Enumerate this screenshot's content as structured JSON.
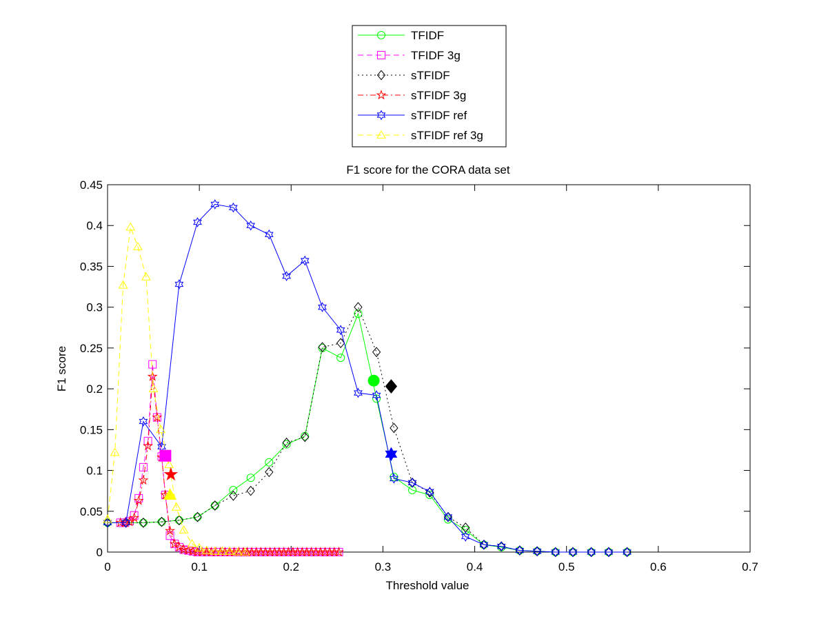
{
  "chart_data": {
    "type": "line",
    "title": "F1 score for the CORA data set",
    "xlabel": "Threshold value",
    "ylabel": "F1 score",
    "xlim": [
      0,
      0.7
    ],
    "ylim": [
      0,
      0.45
    ],
    "xticks": [
      "0",
      "0.1",
      "0.2",
      "0.3",
      "0.4",
      "0.5",
      "0.6",
      "0.7"
    ],
    "yticks": [
      "0",
      "0.05",
      "0.1",
      "0.15",
      "0.2",
      "0.25",
      "0.3",
      "0.35",
      "0.4",
      "0.45"
    ],
    "xtick_values": [
      0,
      0.1,
      0.2,
      0.3,
      0.4,
      0.5,
      0.6,
      0.7
    ],
    "ytick_values": [
      0,
      0.05,
      0.1,
      0.15,
      0.2,
      0.25,
      0.3,
      0.35,
      0.4,
      0.45
    ],
    "grid": false,
    "legend_position": "top-center, outside plot area",
    "series": [
      {
        "name": "TFIDF",
        "color": "#00ff00",
        "line": "solid",
        "marker": "circle",
        "x": [
          0,
          0.02,
          0.039,
          0.059,
          0.078,
          0.098,
          0.117,
          0.137,
          0.156,
          0.176,
          0.195,
          0.215,
          0.234,
          0.254,
          0.273,
          0.293,
          0.312,
          0.332,
          0.351,
          0.371,
          0.39,
          0.41,
          0.429,
          0.449,
          0.468,
          0.488,
          0.507,
          0.527,
          0.546,
          0.566
        ],
        "y": [
          0.036,
          0.036,
          0.036,
          0.037,
          0.039,
          0.043,
          0.057,
          0.076,
          0.091,
          0.11,
          0.132,
          0.142,
          0.25,
          0.238,
          0.292,
          0.188,
          0.092,
          0.076,
          0.07,
          0.04,
          0.027,
          0.009,
          0.006,
          0.002,
          0.001,
          0,
          0,
          0,
          0,
          0
        ],
        "highlight": {
          "x": 0.29,
          "y": 0.21
        }
      },
      {
        "name": "TFIDF 3g",
        "color": "#ff00ff",
        "line": "dashed",
        "marker": "square",
        "x": [
          0,
          0.005,
          0.01,
          0.015,
          0.02,
          0.025,
          0.03,
          0.035,
          0.04,
          0.045,
          0.049,
          0.054,
          0.059,
          0.064,
          0.069,
          0.074,
          0.079,
          0.084,
          0.089,
          0.094,
          0.099,
          0.104,
          0.109,
          0.114,
          0.119,
          0.124,
          0.129,
          0.134,
          0.138,
          0.143,
          0.148,
          0.153,
          0.158,
          0.163,
          0.168,
          0.173,
          0.178,
          0.183,
          0.188,
          0.193,
          0.198,
          0.203,
          0.208,
          0.213,
          0.218,
          0.223,
          0.228,
          0.233,
          0.238
        ],
        "y": [
          0.036,
          0.036,
          0.038,
          0.045,
          0.066,
          0.104,
          0.136,
          0.23,
          0.165,
          0.117,
          0.07,
          0.02,
          0.01,
          0.006,
          0.003,
          0.002,
          0.001,
          0,
          0,
          0,
          0,
          0,
          0,
          0,
          0,
          0,
          0,
          0,
          0,
          0,
          0,
          0,
          0,
          0,
          0,
          0,
          0,
          0,
          0,
          0,
          0,
          0,
          0,
          0,
          0,
          0,
          0,
          0,
          0
        ],
        "x_offset": 0.014,
        "highlight": {
          "x": 0.063,
          "y": 0.118
        }
      },
      {
        "name": "sTFIDF",
        "color": "#000000",
        "line": "dotted",
        "marker": "diamond",
        "x": [
          0,
          0.02,
          0.039,
          0.059,
          0.078,
          0.098,
          0.117,
          0.137,
          0.156,
          0.176,
          0.195,
          0.215,
          0.234,
          0.254,
          0.273,
          0.293,
          0.312,
          0.332,
          0.351,
          0.371,
          0.39,
          0.41,
          0.429,
          0.449,
          0.468,
          0.488,
          0.507,
          0.527,
          0.546,
          0.566
        ],
        "y": [
          0.036,
          0.036,
          0.036,
          0.037,
          0.039,
          0.043,
          0.057,
          0.069,
          0.075,
          0.098,
          0.134,
          0.141,
          0.251,
          0.256,
          0.3,
          0.245,
          0.152,
          0.085,
          0.073,
          0.043,
          0.03,
          0.009,
          0.007,
          0.002,
          0.001,
          0,
          0,
          0,
          0,
          0
        ],
        "highlight": {
          "x": 0.309,
          "y": 0.203
        }
      },
      {
        "name": "sTFIDF 3g",
        "color": "#ff0000",
        "line": "dashdot",
        "marker": "star",
        "x": [
          0,
          0.005,
          0.01,
          0.015,
          0.02,
          0.025,
          0.03,
          0.035,
          0.04,
          0.045,
          0.049,
          0.054,
          0.059,
          0.064,
          0.069,
          0.074,
          0.079,
          0.084,
          0.089,
          0.094,
          0.099,
          0.104,
          0.109,
          0.114,
          0.119,
          0.124,
          0.129,
          0.134,
          0.138,
          0.143,
          0.148,
          0.153,
          0.158,
          0.163,
          0.168,
          0.173,
          0.178,
          0.183,
          0.188,
          0.193,
          0.198,
          0.203,
          0.208,
          0.213,
          0.218,
          0.223,
          0.228,
          0.233,
          0.238
        ],
        "y": [
          0.036,
          0.036,
          0.037,
          0.042,
          0.063,
          0.088,
          0.13,
          0.215,
          0.165,
          0.116,
          0.07,
          0.026,
          0.01,
          0.006,
          0.003,
          0.002,
          0.001,
          0,
          0,
          0,
          0,
          0,
          0,
          0,
          0,
          0,
          0,
          0,
          0,
          0,
          0,
          0,
          0,
          0,
          0,
          0,
          0,
          0,
          0,
          0,
          0,
          0,
          0,
          0,
          0,
          0,
          0,
          0,
          0
        ],
        "x_offset": 0.014,
        "highlight": {
          "x": 0.069,
          "y": 0.095
        }
      },
      {
        "name": "sTFIDF ref",
        "color": "#0000ff",
        "line": "solid",
        "marker": "hexagram",
        "x": [
          0,
          0.02,
          0.039,
          0.059,
          0.078,
          0.098,
          0.117,
          0.137,
          0.156,
          0.176,
          0.195,
          0.215,
          0.234,
          0.254,
          0.273,
          0.293,
          0.312,
          0.332,
          0.351,
          0.371,
          0.39,
          0.41,
          0.429,
          0.449,
          0.468,
          0.488,
          0.507,
          0.527,
          0.546,
          0.566
        ],
        "y": [
          0.036,
          0.036,
          0.16,
          0.129,
          0.328,
          0.404,
          0.426,
          0.422,
          0.4,
          0.389,
          0.338,
          0.357,
          0.3,
          0.272,
          0.195,
          0.192,
          0.09,
          0.085,
          0.074,
          0.043,
          0.019,
          0.009,
          0.007,
          0.002,
          0.001,
          0,
          0,
          0,
          0,
          0
        ],
        "highlight": {
          "x": 0.309,
          "y": 0.12
        }
      },
      {
        "name": "sTFIDF ref 3g",
        "color": "#ffff00",
        "line": "dashed",
        "marker": "triangle",
        "x": [
          0,
          0.008,
          0.017,
          0.025,
          0.033,
          0.042,
          0.05,
          0.058,
          0.067,
          0.075,
          0.083,
          0.092,
          0.1,
          0.108,
          0.117,
          0.125,
          0.133,
          0.142,
          0.15
        ],
        "y": [
          0.04,
          0.122,
          0.327,
          0.398,
          0.374,
          0.337,
          0.2,
          0.15,
          0.107,
          0.055,
          0.027,
          0.01,
          0.005,
          0.002,
          0.001,
          0.001,
          0.001,
          0,
          0
        ],
        "highlight": {
          "x": 0.068,
          "y": 0.07
        }
      }
    ]
  }
}
